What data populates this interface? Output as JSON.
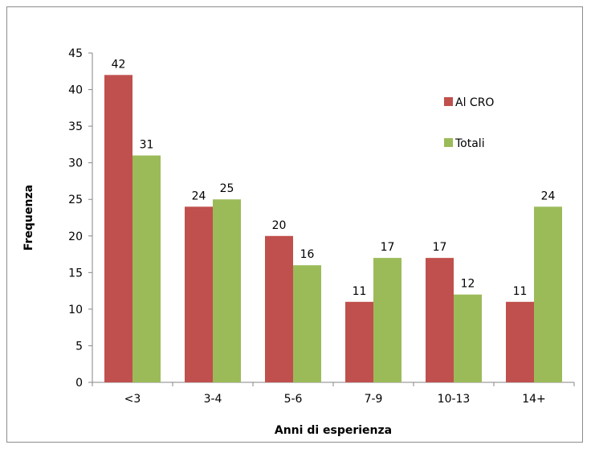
{
  "chart_data": {
    "type": "bar",
    "categories": [
      "<3",
      "3-4",
      "5-6",
      "7-9",
      "10-13",
      "14+"
    ],
    "series": [
      {
        "name": "Al CRO",
        "values": [
          42,
          24,
          20,
          11,
          17,
          11
        ],
        "color": "#c0504d"
      },
      {
        "name": "Totali",
        "values": [
          31,
          25,
          16,
          17,
          12,
          24
        ],
        "color": "#9bbb59"
      }
    ],
    "xlabel": "Anni di esperienza",
    "ylabel": "Frequenza",
    "ylim": [
      0,
      45
    ],
    "yticks": [
      0,
      5,
      10,
      15,
      20,
      25,
      30,
      35,
      40,
      45
    ],
    "grid": false,
    "legend": "right"
  }
}
